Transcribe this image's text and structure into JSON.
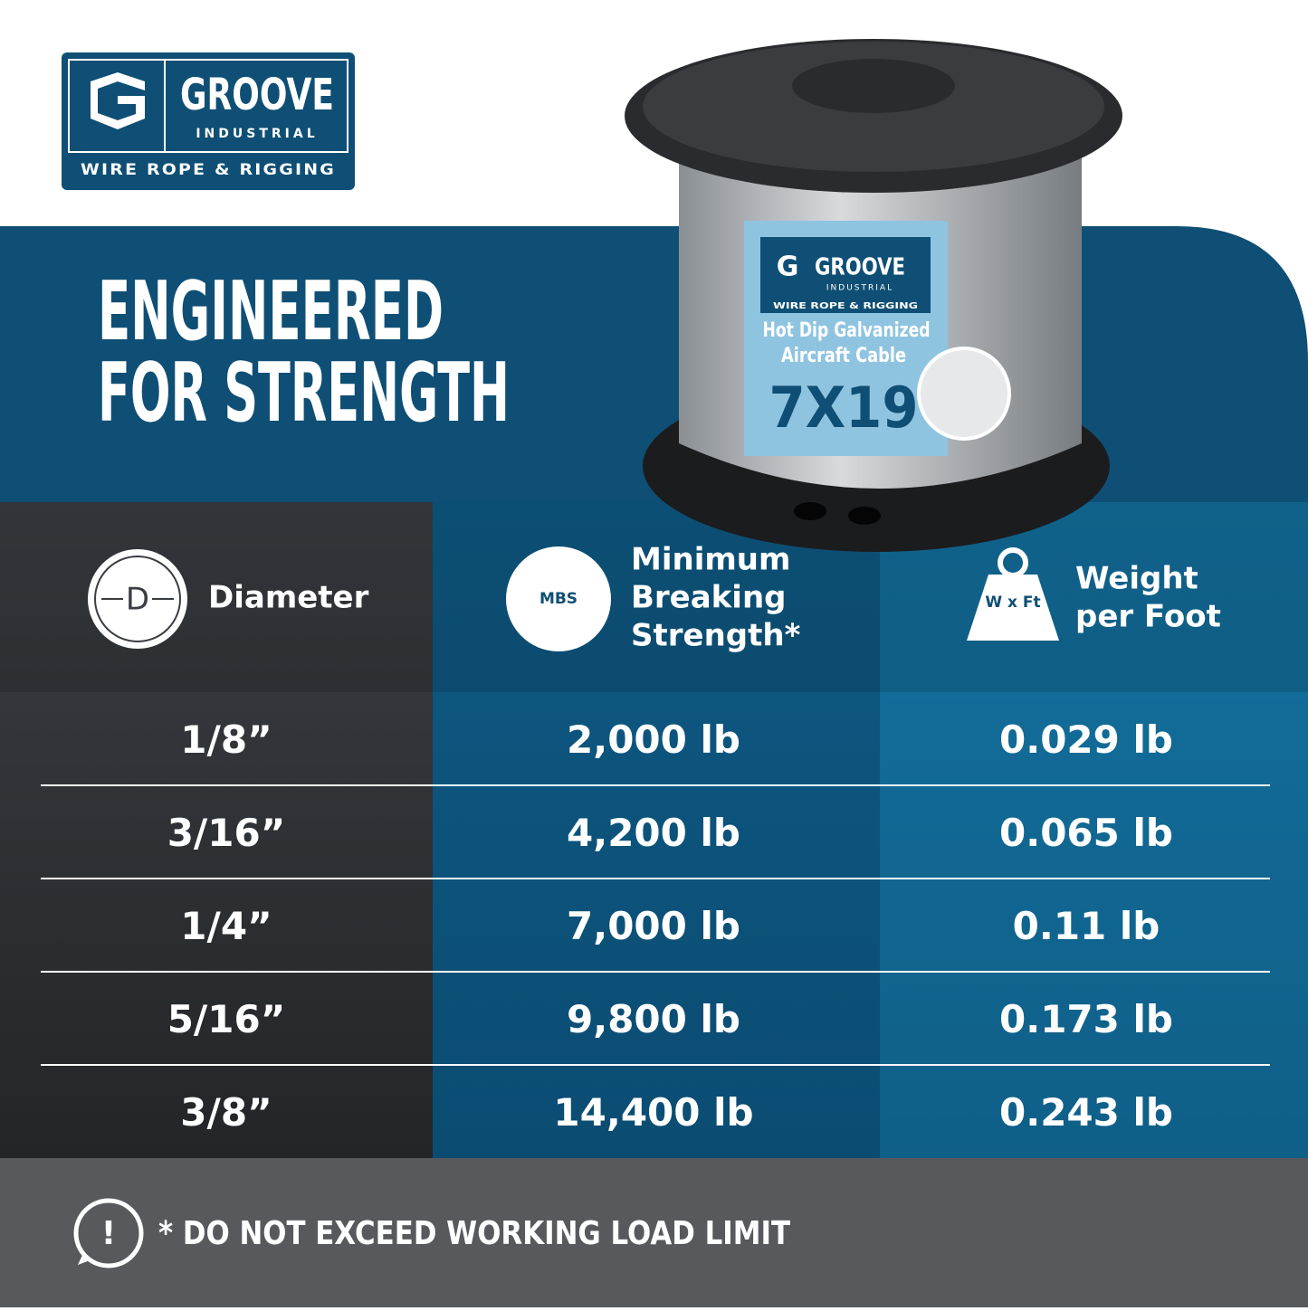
{
  "logo": {
    "brand": "GROOVE",
    "sub": "INDUSTRIAL",
    "tagline": "WIRE ROPE & RIGGING"
  },
  "headline": [
    "ENGINEERED",
    "FOR STRENGTH"
  ],
  "spool_label": {
    "brand": "GROOVE",
    "sub": "INDUSTRIAL",
    "tagline": "WIRE ROPE & RIGGING",
    "line1": "Hot Dip Galvanized",
    "line2": "Aircraft Cable",
    "construction": "7X19"
  },
  "table": {
    "headers": [
      {
        "icon": "D",
        "label": [
          "Diameter"
        ]
      },
      {
        "icon": "MBS",
        "label": [
          "Minimum",
          "Breaking",
          "Strength*"
        ]
      },
      {
        "icon": "W x Ft",
        "label": [
          "Weight",
          "per Foot"
        ]
      }
    ],
    "rows": [
      [
        "1/8”",
        "2,000 lb",
        "0.029 lb"
      ],
      [
        "3/16”",
        "4,200 lb",
        "0.065 lb"
      ],
      [
        "1/4”",
        "7,000 lb",
        "0.11 lb"
      ],
      [
        "5/16”",
        "9,800 lb",
        "0.173 lb"
      ],
      [
        "3/8”",
        "14,400 lb",
        "0.243 lb"
      ]
    ]
  },
  "footer": {
    "icon": "!",
    "note": "* DO NOT EXCEED WORKING LOAD LIMIT"
  }
}
